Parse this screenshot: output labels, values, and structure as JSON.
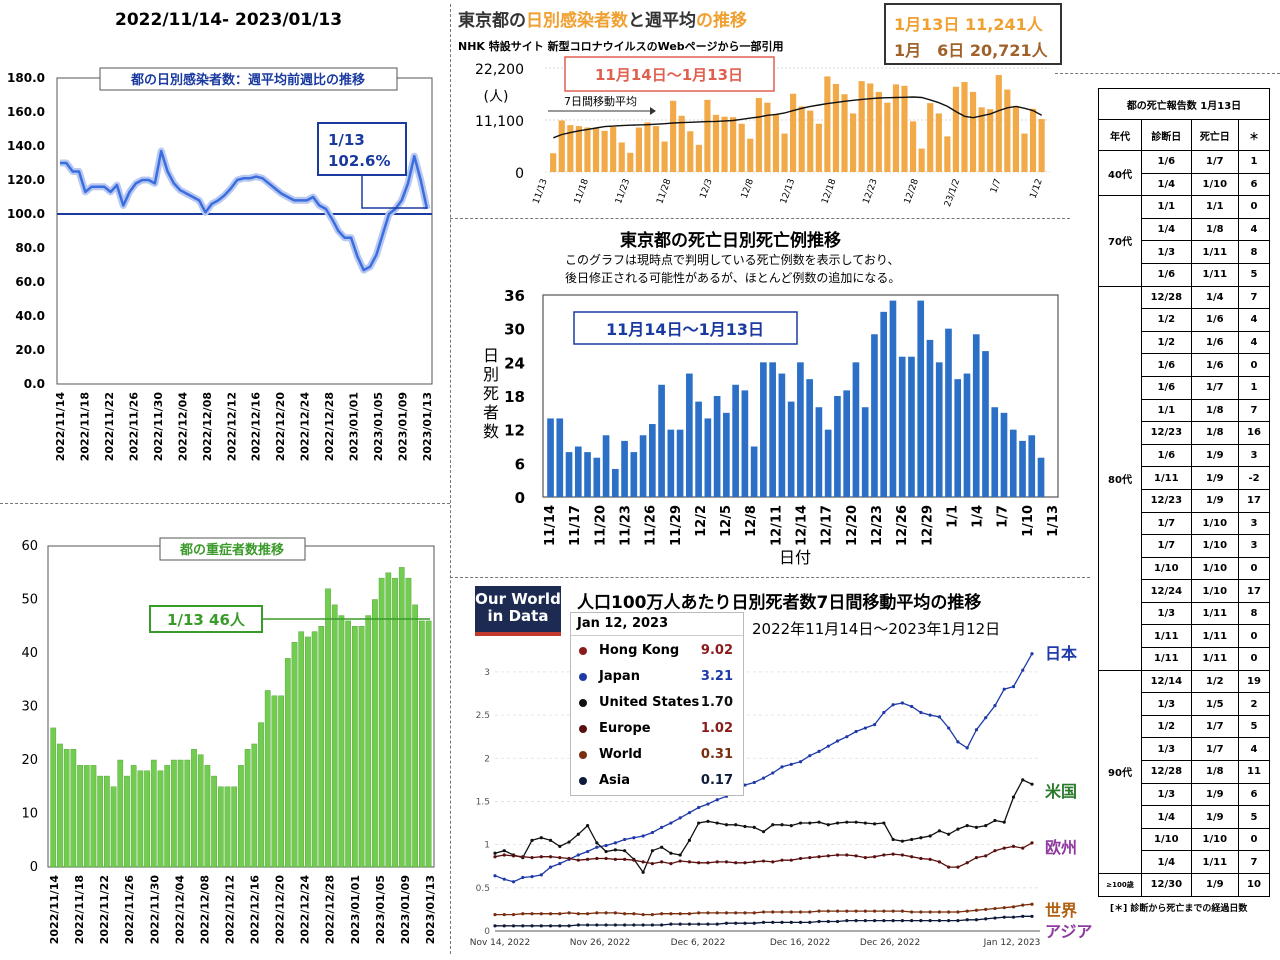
{
  "header": {
    "date_range": "2022/11/14- 2023/01/13"
  },
  "panel_weekly_ratio": {
    "chart_data": {
      "type": "line",
      "title": "都の日別感染者数：週平均前週比の推移",
      "x_labels": [
        "2022/11/14",
        "2022/11/18",
        "2022/11/22",
        "2022/11/26",
        "2022/11/30",
        "2022/12/04",
        "2022/12/08",
        "2022/12/12",
        "2022/12/16",
        "2022/12/20",
        "2022/12/24",
        "2022/12/28",
        "2023/01/01",
        "2023/01/05",
        "2023/01/09",
        "2023/01/13"
      ],
      "y_ticks": [
        "180.0",
        "160.0",
        "140.0",
        "120.0",
        "100.0",
        "80.0",
        "60.0",
        "40.0",
        "20.0",
        "0.0"
      ],
      "ylim": [
        0,
        180
      ],
      "reference_line": 100,
      "values": [
        130,
        130,
        125,
        125,
        113,
        116,
        116,
        116,
        113,
        117,
        105,
        113,
        118,
        120,
        120,
        118,
        137,
        125,
        118,
        114,
        112,
        110,
        108,
        101,
        106,
        108,
        111,
        115,
        120,
        121,
        121,
        122,
        121,
        118,
        115,
        112,
        110,
        108,
        108,
        108,
        110,
        105,
        103,
        97,
        90,
        86,
        86,
        75,
        67,
        69,
        76,
        88,
        100,
        103,
        108,
        118,
        134,
        120,
        103
      ],
      "annotation": {
        "label": "1/13",
        "value_text": "102.6%"
      }
    }
  },
  "panel_severe": {
    "chart_data": {
      "type": "bar",
      "title": "都の重症者数推移",
      "x_labels": [
        "2022/11/14",
        "2022/11/18",
        "2022/11/22",
        "2022/11/26",
        "2022/11/30",
        "2022/12/04",
        "2022/12/08",
        "2022/12/12",
        "2022/12/16",
        "2022/12/20",
        "2022/12/24",
        "2022/12/28",
        "2023/01/01",
        "2023/01/05",
        "2023/01/09",
        "2023/01/13"
      ],
      "y_ticks": [
        "60",
        "50",
        "40",
        "30",
        "20",
        "10",
        "0"
      ],
      "ylim": [
        0,
        60
      ],
      "values": [
        26,
        23,
        22,
        22,
        19,
        19,
        19,
        17,
        17,
        15,
        20,
        17,
        19,
        18,
        18,
        20,
        18,
        19,
        20,
        20,
        20,
        22,
        21,
        19,
        17,
        15,
        15,
        15,
        19,
        22,
        23,
        27,
        33,
        32,
        32,
        39,
        42,
        44,
        43,
        44,
        45,
        52,
        49,
        47,
        46,
        45,
        45,
        47,
        50,
        54,
        55,
        54,
        56,
        54,
        49,
        46,
        46
      ],
      "reference_line": 46,
      "annotation": "1/13  46人"
    }
  },
  "panel_cases": {
    "title_parts": [
      "東京都の",
      "日別感染者数",
      "と",
      "週平均",
      "の推移"
    ],
    "subtitle": "NHK 特設サイト 新型コロナウイルスのWebページから一部引用",
    "boxed_stats": [
      "1月13日 11,241人",
      "1月　6日 20,721人"
    ],
    "range_label": "11月14日～1月13日",
    "ma_label": "7日間移動平均",
    "unit": "(人)",
    "chart_data": {
      "type": "bar",
      "y_ticks": [
        "22,200",
        "11,100",
        "0"
      ],
      "ylim": [
        0,
        22200
      ],
      "x_labels": [
        "11/13",
        "11/18",
        "11/23",
        "11/28",
        "12/3",
        "12/8",
        "12/13",
        "12/18",
        "12/23",
        "12/28",
        "23/1/2",
        "1/7",
        "1/12"
      ],
      "values": [
        4000,
        11000,
        10000,
        9800,
        9500,
        9300,
        8800,
        9600,
        6300,
        4100,
        9500,
        10600,
        9800,
        6500,
        15200,
        12000,
        8700,
        5800,
        15400,
        12200,
        11800,
        11700,
        10300,
        7100,
        15800,
        14800,
        12300,
        8200,
        16700,
        14000,
        13100,
        10300,
        20400,
        18800,
        16600,
        12500,
        19400,
        18900,
        17100,
        14800,
        18700,
        18400,
        10800,
        5000,
        14700,
        12500,
        7600,
        18200,
        19200,
        17100,
        13800,
        13400,
        20700,
        17600,
        14100,
        8200,
        13500,
        11300
      ],
      "moving_average": [
        7300,
        8000,
        8400,
        8800,
        9100,
        9400,
        9700,
        9800,
        9900,
        10000,
        10050,
        10100,
        10200,
        10300,
        10450,
        10550,
        10600,
        10700,
        10750,
        10800,
        10900,
        11000,
        11250,
        11500,
        11750,
        12100,
        12300,
        12600,
        13100,
        13600,
        14000,
        14300,
        14600,
        14850,
        15100,
        15300,
        15500,
        15650,
        15800,
        15850,
        15900,
        15950,
        16000,
        15900,
        15400,
        14800,
        14000,
        12900,
        11900,
        11600,
        12000,
        12400,
        13100,
        13700,
        14000,
        13600,
        13100,
        12100
      ]
    }
  },
  "panel_deaths": {
    "title": "東京都の死亡日別死亡例推移",
    "note_line1": "このグラフは現時点で判明している死亡例数を表示しており、",
    "note_line2": "後日修正される可能性があるが、ほとんど例数の追加になる。",
    "range_label": "11月14日～1月13日",
    "chart_data": {
      "type": "bar",
      "ylabel": "日別死者数",
      "xlabel": "日付",
      "y_ticks": [
        "36",
        "30",
        "24",
        "18",
        "12",
        "6",
        "0"
      ],
      "ylim": [
        0,
        36
      ],
      "x_labels": [
        "11/14",
        "11/17",
        "11/20",
        "11/23",
        "11/26",
        "11/29",
        "12/2",
        "12/5",
        "12/8",
        "12/11",
        "12/14",
        "12/17",
        "12/20",
        "12/23",
        "12/26",
        "12/29",
        "1/1",
        "1/4",
        "1/7",
        "1/10",
        "1/13"
      ],
      "values": [
        14,
        14,
        8,
        9,
        8,
        7,
        11,
        5,
        10,
        8,
        11,
        13,
        20,
        12,
        12,
        22,
        17,
        14,
        18,
        15,
        20,
        19,
        9,
        24,
        24,
        22,
        17,
        24,
        21,
        16,
        12,
        18,
        19,
        24,
        16,
        29,
        33,
        35,
        25,
        25,
        35,
        28,
        24,
        30,
        21,
        22,
        29,
        26,
        16,
        15,
        12,
        10,
        11,
        7,
        0
      ]
    }
  },
  "panel_owid": {
    "logo_line1": "Our World",
    "logo_line2": "in Data",
    "title": "人口100万人あたり日別死者数7日間移動平均の推移",
    "subtitle": "2022年11月14日～2023年1月12日",
    "legend_date": "Jan 12, 2023",
    "legend": [
      {
        "name": "Hong Kong",
        "value": "9.02",
        "color": "#8b1a1a",
        "value_color": "#8b1a1a"
      },
      {
        "name": "Japan",
        "value": "3.21",
        "color": "#1f3aa8",
        "value_color": "#1f3aa8"
      },
      {
        "name": "United States",
        "value": "1.70",
        "color": "#111111",
        "value_color": "#111111"
      },
      {
        "name": "Europe",
        "value": "1.02",
        "color": "#5a1010",
        "value_color": "#8b1a1a"
      },
      {
        "name": "World",
        "value": "0.31",
        "color": "#7a2e0e",
        "value_color": "#7a2e0e"
      },
      {
        "name": "Asia",
        "value": "0.17",
        "color": "#0f1a3a",
        "value_color": "#0f1a3a"
      }
    ],
    "right_labels": [
      {
        "text": "日本",
        "color": "#1f3aa8"
      },
      {
        "text": "米国",
        "color": "#2a7a2a"
      },
      {
        "text": "欧州",
        "color": "#8e3aa0"
      },
      {
        "text": "世界",
        "color": "#b06010"
      },
      {
        "text": "アジア",
        "color": "#8e3aa0"
      }
    ],
    "chart_data": {
      "type": "line",
      "y_ticks": [
        "3",
        "2.5",
        "2",
        "1.5",
        "1",
        "0.5",
        "0"
      ],
      "ylim": [
        0,
        3.3
      ],
      "x_labels": [
        "Nov 14, 2022",
        "Nov 26, 2022",
        "Dec 6, 2022",
        "Dec 16, 2022",
        "Dec 26, 2022",
        "Jan 12, 2023"
      ],
      "series": [
        {
          "name": "Japan",
          "color": "#1f3aa8",
          "values": [
            0.64,
            0.6,
            0.57,
            0.62,
            0.63,
            0.65,
            0.74,
            0.78,
            0.83,
            0.88,
            0.92,
            0.97,
            0.99,
            1.02,
            1.06,
            1.08,
            1.1,
            1.14,
            1.2,
            1.25,
            1.31,
            1.37,
            1.43,
            1.47,
            1.52,
            1.56,
            1.64,
            1.69,
            1.72,
            1.77,
            1.83,
            1.9,
            1.93,
            1.96,
            2.03,
            2.08,
            2.14,
            2.2,
            2.25,
            2.31,
            2.35,
            2.39,
            2.53,
            2.62,
            2.64,
            2.6,
            2.53,
            2.5,
            2.48,
            2.35,
            2.19,
            2.12,
            2.33,
            2.47,
            2.61,
            2.8,
            2.83,
            3.02,
            3.21
          ]
        },
        {
          "name": "United States",
          "color": "#111111",
          "values": [
            0.9,
            0.93,
            0.88,
            0.85,
            1.05,
            1.08,
            1.05,
            0.98,
            1.03,
            1.12,
            1.22,
            1.02,
            0.92,
            0.94,
            0.93,
            0.83,
            0.68,
            0.93,
            0.97,
            0.9,
            0.88,
            1.05,
            1.25,
            1.27,
            1.25,
            1.23,
            1.23,
            1.21,
            1.2,
            1.15,
            1.23,
            1.23,
            1.22,
            1.25,
            1.25,
            1.26,
            1.23,
            1.25,
            1.26,
            1.26,
            1.25,
            1.24,
            1.25,
            1.06,
            1.04,
            1.06,
            1.08,
            1.1,
            1.16,
            1.12,
            1.18,
            1.22,
            1.2,
            1.22,
            1.28,
            1.26,
            1.55,
            1.75,
            1.7
          ]
        },
        {
          "name": "Europe",
          "color": "#5a1010",
          "values": [
            0.86,
            0.88,
            0.87,
            0.86,
            0.85,
            0.86,
            0.86,
            0.85,
            0.84,
            0.82,
            0.83,
            0.84,
            0.84,
            0.83,
            0.83,
            0.82,
            0.8,
            0.78,
            0.8,
            0.78,
            0.81,
            0.8,
            0.79,
            0.79,
            0.8,
            0.8,
            0.79,
            0.79,
            0.8,
            0.81,
            0.8,
            0.82,
            0.82,
            0.84,
            0.85,
            0.86,
            0.87,
            0.88,
            0.88,
            0.87,
            0.85,
            0.86,
            0.88,
            0.89,
            0.88,
            0.86,
            0.84,
            0.83,
            0.8,
            0.74,
            0.74,
            0.79,
            0.85,
            0.87,
            0.93,
            0.96,
            0.98,
            0.96,
            1.02
          ]
        },
        {
          "name": "World",
          "color": "#7a2e0e",
          "values": [
            0.19,
            0.19,
            0.19,
            0.2,
            0.2,
            0.2,
            0.2,
            0.2,
            0.21,
            0.2,
            0.2,
            0.21,
            0.21,
            0.21,
            0.2,
            0.2,
            0.19,
            0.19,
            0.2,
            0.2,
            0.2,
            0.2,
            0.21,
            0.21,
            0.21,
            0.21,
            0.21,
            0.21,
            0.21,
            0.22,
            0.22,
            0.22,
            0.22,
            0.22,
            0.22,
            0.23,
            0.23,
            0.23,
            0.23,
            0.23,
            0.23,
            0.23,
            0.23,
            0.23,
            0.23,
            0.22,
            0.22,
            0.22,
            0.22,
            0.22,
            0.22,
            0.23,
            0.24,
            0.25,
            0.26,
            0.27,
            0.28,
            0.3,
            0.31
          ]
        },
        {
          "name": "Asia",
          "color": "#0f1a3a",
          "values": [
            0.06,
            0.06,
            0.06,
            0.06,
            0.06,
            0.06,
            0.06,
            0.06,
            0.06,
            0.07,
            0.07,
            0.07,
            0.07,
            0.07,
            0.07,
            0.07,
            0.07,
            0.07,
            0.07,
            0.08,
            0.08,
            0.08,
            0.08,
            0.08,
            0.08,
            0.09,
            0.09,
            0.09,
            0.09,
            0.1,
            0.1,
            0.1,
            0.1,
            0.1,
            0.1,
            0.11,
            0.11,
            0.11,
            0.12,
            0.12,
            0.12,
            0.12,
            0.12,
            0.12,
            0.12,
            0.12,
            0.12,
            0.12,
            0.12,
            0.12,
            0.12,
            0.13,
            0.13,
            0.14,
            0.15,
            0.16,
            0.16,
            0.17,
            0.17
          ]
        }
      ]
    }
  },
  "death_table": {
    "title": "都の死亡報告数 1月13日",
    "headers": [
      "年代",
      "診断日",
      "死亡日",
      "＊"
    ],
    "groups": [
      {
        "age": "40代",
        "rows": [
          [
            "1/6",
            "1/7",
            "1"
          ],
          [
            "1/4",
            "1/10",
            "6"
          ]
        ]
      },
      {
        "age": "70代",
        "rows": [
          [
            "1/1",
            "1/1",
            "0"
          ],
          [
            "1/4",
            "1/8",
            "4"
          ],
          [
            "1/3",
            "1/11",
            "8"
          ],
          [
            "1/6",
            "1/11",
            "5"
          ]
        ]
      },
      {
        "age": "80代",
        "rows": [
          [
            "12/28",
            "1/4",
            "7"
          ],
          [
            "1/2",
            "1/6",
            "4"
          ],
          [
            "1/2",
            "1/6",
            "4"
          ],
          [
            "1/6",
            "1/6",
            "0"
          ],
          [
            "1/6",
            "1/7",
            "1"
          ],
          [
            "1/1",
            "1/8",
            "7"
          ],
          [
            "12/23",
            "1/8",
            "16"
          ],
          [
            "1/6",
            "1/9",
            "3"
          ],
          [
            "1/11",
            "1/9",
            "-2"
          ],
          [
            "12/23",
            "1/9",
            "17"
          ],
          [
            "1/7",
            "1/10",
            "3"
          ],
          [
            "1/7",
            "1/10",
            "3"
          ],
          [
            "1/10",
            "1/10",
            "0"
          ],
          [
            "12/24",
            "1/10",
            "17"
          ],
          [
            "1/3",
            "1/11",
            "8"
          ],
          [
            "1/11",
            "1/11",
            "0"
          ],
          [
            "1/11",
            "1/11",
            "0"
          ]
        ]
      },
      {
        "age": "90代",
        "rows": [
          [
            "12/14",
            "1/2",
            "19"
          ],
          [
            "1/3",
            "1/5",
            "2"
          ],
          [
            "1/2",
            "1/7",
            "5"
          ],
          [
            "1/3",
            "1/7",
            "4"
          ],
          [
            "12/28",
            "1/8",
            "11"
          ],
          [
            "1/3",
            "1/9",
            "6"
          ],
          [
            "1/4",
            "1/9",
            "5"
          ],
          [
            "1/10",
            "1/10",
            "0"
          ],
          [
            "1/4",
            "1/11",
            "7"
          ]
        ]
      },
      {
        "age": "≥100歳",
        "rows": [
          [
            "12/30",
            "1/9",
            "10"
          ]
        ]
      }
    ],
    "footnote": "[＊] 診断から死亡までの経過日数"
  }
}
